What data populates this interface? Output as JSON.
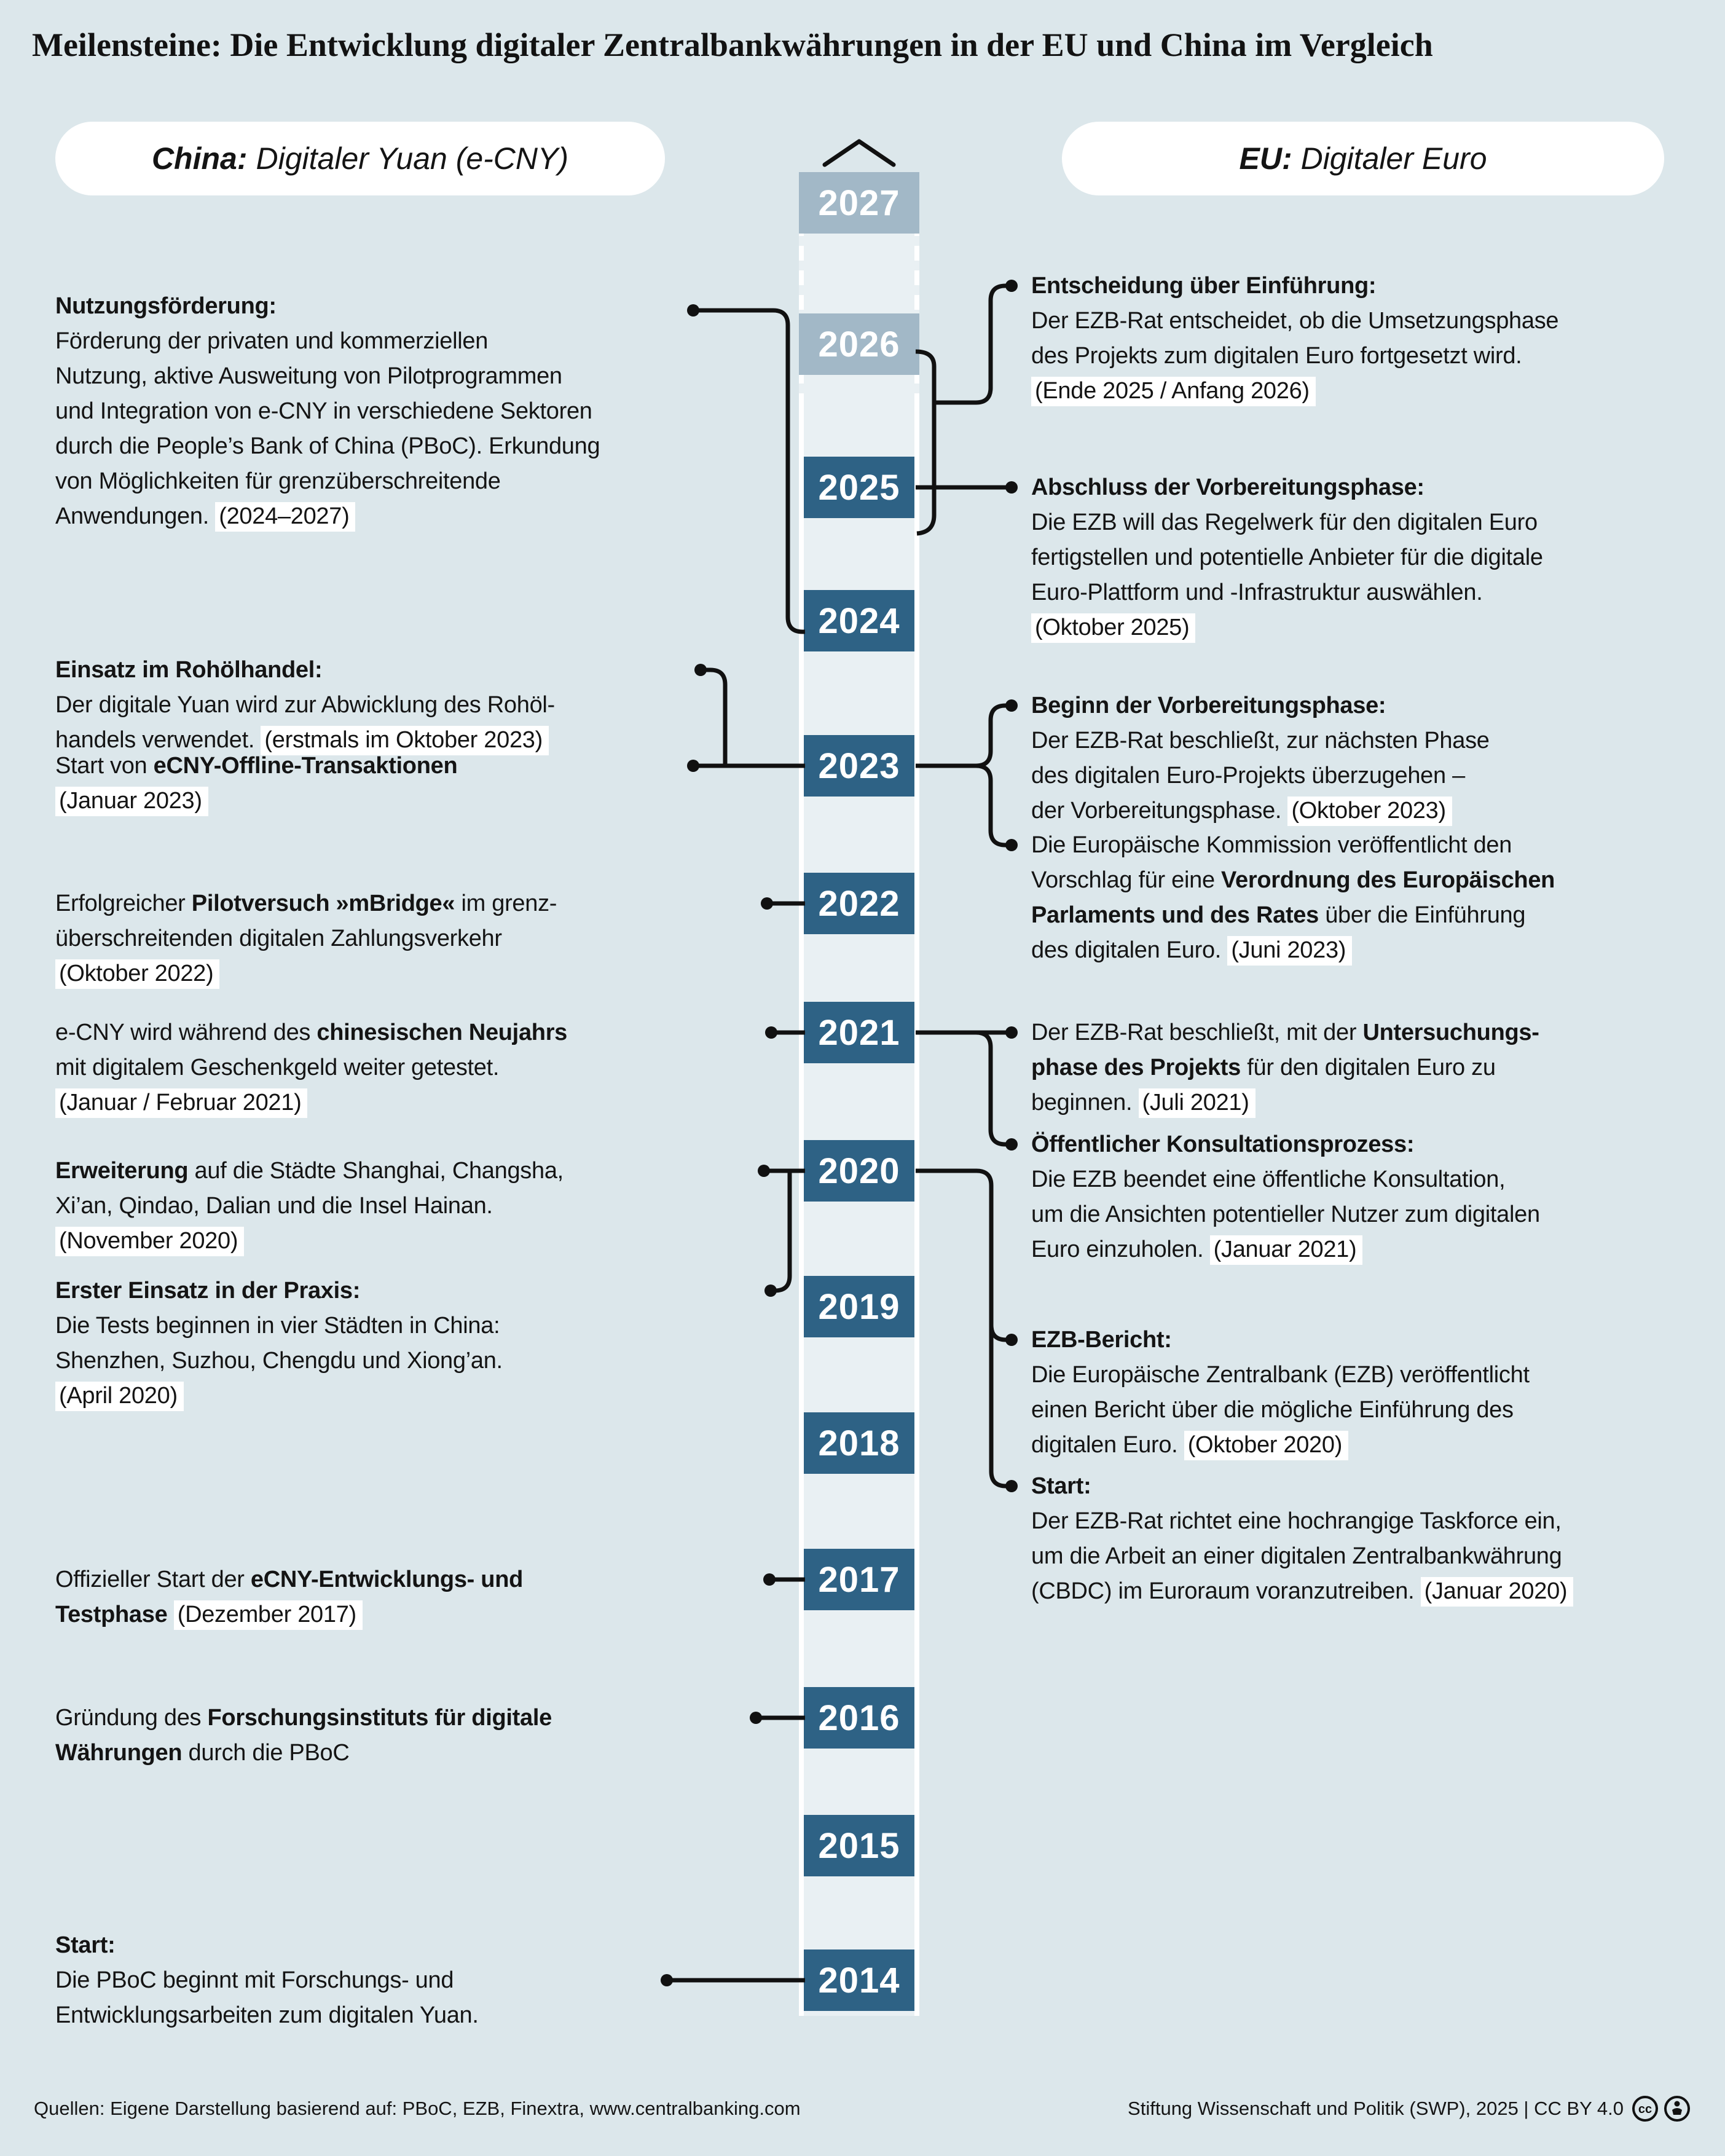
{
  "title": "Meilensteine: Die Entwicklung digitaler Zentralbankwährungen in der EU und China im Vergleich",
  "header": {
    "china_label_bold": "China:",
    "china_label_rest": "Digitaler Yuan (e-CNY)",
    "eu_label_bold": "EU:",
    "eu_label_rest": "Digitaler Euro"
  },
  "timeline": {
    "arrow_icon": "chevron-up-icon",
    "colors": {
      "background": "#dce7eb",
      "track": "#e9f0f3",
      "year_past": "#2e6285",
      "year_future": "#a2b8c7",
      "connector": "#111111",
      "highlight": "#ffffff"
    },
    "years": [
      {
        "label": "2027",
        "future": true
      },
      {
        "label": "2026",
        "future": true
      },
      {
        "label": "2025",
        "future": false
      },
      {
        "label": "2024",
        "future": false
      },
      {
        "label": "2023",
        "future": false
      },
      {
        "label": "2022",
        "future": false
      },
      {
        "label": "2021",
        "future": false
      },
      {
        "label": "2020",
        "future": false
      },
      {
        "label": "2019",
        "future": false
      },
      {
        "label": "2018",
        "future": false
      },
      {
        "label": "2017",
        "future": false
      },
      {
        "label": "2016",
        "future": false
      },
      {
        "label": "2015",
        "future": false
      },
      {
        "label": "2014",
        "future": false
      }
    ]
  },
  "china": [
    {
      "id": "nutzungsfoerderung",
      "years": "2024–2027",
      "lines": [
        [
          {
            "t": "Nutzungsförderung:",
            "b": true
          }
        ],
        [
          {
            "t": "Förderung der privaten und kommerziellen"
          }
        ],
        [
          {
            "t": "Nutzung, aktive Ausweitung von Pilotprogrammen"
          }
        ],
        [
          {
            "t": "und Integration von e-CNY in verschiedene Sektoren"
          }
        ],
        [
          {
            "t": "durch die People’s Bank of China (PBoC). Erkundung"
          }
        ],
        [
          {
            "t": "von Möglichkeiten für grenzüberschreitende"
          }
        ],
        [
          {
            "t": "Anwendungen. "
          },
          {
            "t": "(2024–2027)",
            "h": true
          }
        ]
      ]
    },
    {
      "id": "rohoelhandel",
      "years": "2023",
      "lines": [
        [
          {
            "t": "Einsatz im Rohölhandel:",
            "b": true
          }
        ],
        [
          {
            "t": "Der digitale Yuan wird zur Abwicklung des Rohöl-"
          }
        ],
        [
          {
            "t": "handels verwendet. "
          },
          {
            "t": "(erstmals im Oktober 2023)",
            "h": true
          }
        ]
      ]
    },
    {
      "id": "offline-transaktionen",
      "years": "2023",
      "lines": [
        [
          {
            "t": "Start von "
          },
          {
            "t": "eCNY-Offline-Transaktionen",
            "b": true
          }
        ],
        [
          {
            "t": "(Januar 2023)",
            "h": true
          }
        ]
      ]
    },
    {
      "id": "mbridge",
      "years": "2022",
      "lines": [
        [
          {
            "t": "Erfolgreicher "
          },
          {
            "t": "Pilotversuch »mBridge«",
            "b": true
          },
          {
            "t": " im grenz-"
          }
        ],
        [
          {
            "t": "überschreitenden digitalen Zahlungsverkehr"
          }
        ],
        [
          {
            "t": "(Oktober 2022)",
            "h": true
          }
        ]
      ]
    },
    {
      "id": "neujahr",
      "years": "2021",
      "lines": [
        [
          {
            "t": "e-CNY wird während des "
          },
          {
            "t": "chinesischen Neujahrs",
            "b": true
          }
        ],
        [
          {
            "t": "mit digitalem Geschenkgeld weiter getestet."
          }
        ],
        [
          {
            "t": "(Januar / Februar 2021)",
            "h": true
          }
        ]
      ]
    },
    {
      "id": "erweiterung",
      "years": "2020",
      "lines": [
        [
          {
            "t": "Erweiterung",
            "b": true
          },
          {
            "t": " auf die Städte Shanghai, Changsha,"
          }
        ],
        [
          {
            "t": "Xi’an, Qindao, Dalian und die Insel Hainan."
          }
        ],
        [
          {
            "t": "(November 2020)",
            "h": true
          }
        ]
      ]
    },
    {
      "id": "erster-einsatz",
      "years": "2020",
      "lines": [
        [
          {
            "t": "Erster Einsatz in der Praxis:",
            "b": true
          }
        ],
        [
          {
            "t": "Die Tests beginnen in vier Städten in China:"
          }
        ],
        [
          {
            "t": "Shenzhen, Suzhou, Chengdu und Xiong’an."
          }
        ],
        [
          {
            "t": "(April 2020)",
            "h": true
          }
        ]
      ]
    },
    {
      "id": "testphase",
      "years": "2017",
      "lines": [
        [
          {
            "t": "Offizieller Start der "
          },
          {
            "t": "eCNY-Entwicklungs- und",
            "b": true
          }
        ],
        [
          {
            "t": "Testphase",
            "b": true
          },
          {
            "t": " "
          },
          {
            "t": "(Dezember 2017)",
            "h": true
          }
        ]
      ]
    },
    {
      "id": "forschungsinstitut",
      "years": "2016",
      "lines": [
        [
          {
            "t": "Gründung des "
          },
          {
            "t": "Forschungsinstituts für digitale",
            "b": true
          }
        ],
        [
          {
            "t": "Währungen",
            "b": true
          },
          {
            "t": " durch die PBoC"
          }
        ]
      ]
    },
    {
      "id": "start-china",
      "years": "2014",
      "lines": [
        [
          {
            "t": "Start:",
            "b": true
          }
        ],
        [
          {
            "t": "Die PBoC beginnt mit Forschungs- und"
          }
        ],
        [
          {
            "t": "Entwicklungsarbeiten zum digitalen Yuan."
          }
        ]
      ]
    }
  ],
  "eu": [
    {
      "id": "entscheidung-einfuehrung",
      "years": "2025/2026",
      "lines": [
        [
          {
            "t": "Entscheidung über Einführung:",
            "b": true
          }
        ],
        [
          {
            "t": "Der EZB-Rat entscheidet, ob die Umsetzungsphase"
          }
        ],
        [
          {
            "t": "des Projekts zum digitalen Euro fortgesetzt wird."
          }
        ],
        [
          {
            "t": "(Ende 2025 / Anfang 2026)",
            "h": true
          }
        ]
      ]
    },
    {
      "id": "abschluss-vorbereitungsphase",
      "years": "2025",
      "lines": [
        [
          {
            "t": "Abschluss der Vorbereitungsphase:",
            "b": true
          }
        ],
        [
          {
            "t": "Die EZB will das Regelwerk für den digitalen Euro"
          }
        ],
        [
          {
            "t": "fertigstellen und potentielle Anbieter für die digitale"
          }
        ],
        [
          {
            "t": "Euro-Plattform und -Infrastruktur auswählen."
          }
        ],
        [
          {
            "t": "(Oktober 2025)",
            "h": true
          }
        ]
      ]
    },
    {
      "id": "beginn-vorbereitungsphase",
      "years": "2023",
      "lines": [
        [
          {
            "t": "Beginn der Vorbereitungsphase:",
            "b": true
          }
        ],
        [
          {
            "t": "Der EZB-Rat beschließt, zur nächsten Phase"
          }
        ],
        [
          {
            "t": "des digitalen Euro-Projekts überzugehen –"
          }
        ],
        [
          {
            "t": "der Vorbereitungsphase. "
          },
          {
            "t": "(Oktober 2023)",
            "h": true
          }
        ]
      ]
    },
    {
      "id": "verordnung",
      "years": "2023",
      "lines": [
        [
          {
            "t": "Die Europäische Kommission veröffentlicht den"
          }
        ],
        [
          {
            "t": "Vorschlag für eine "
          },
          {
            "t": "Verordnung des Europäischen",
            "b": true
          }
        ],
        [
          {
            "t": "Parlaments und des Rates",
            "b": true
          },
          {
            "t": " über die Einführung"
          }
        ],
        [
          {
            "t": "des digitalen Euro. "
          },
          {
            "t": "(Juni 2023)",
            "h": true
          }
        ]
      ]
    },
    {
      "id": "untersuchungsphase",
      "years": "2021",
      "lines": [
        [
          {
            "t": "Der EZB-Rat beschließt, mit der "
          },
          {
            "t": "Untersuchungs-",
            "b": true
          }
        ],
        [
          {
            "t": "phase des Projekts",
            "b": true
          },
          {
            "t": " für den digitalen Euro zu"
          }
        ],
        [
          {
            "t": "beginnen. "
          },
          {
            "t": "(Juli 2021)",
            "h": true
          }
        ]
      ]
    },
    {
      "id": "konsultationsprozess",
      "years": "2021",
      "lines": [
        [
          {
            "t": "Öffentlicher Konsultationsprozess:",
            "b": true
          }
        ],
        [
          {
            "t": "Die EZB beendet eine öffentliche Konsultation,"
          }
        ],
        [
          {
            "t": "um die Ansichten potentieller Nutzer zum digitalen"
          }
        ],
        [
          {
            "t": "Euro einzuholen. "
          },
          {
            "t": "(Januar 2021)",
            "h": true
          }
        ]
      ]
    },
    {
      "id": "ezb-bericht",
      "years": "2020",
      "lines": [
        [
          {
            "t": "EZB-Bericht:",
            "b": true
          }
        ],
        [
          {
            "t": "Die Europäische Zentralbank (EZB) veröffentlicht"
          }
        ],
        [
          {
            "t": "einen Bericht über die mögliche Einführung des"
          }
        ],
        [
          {
            "t": "digitalen Euro. "
          },
          {
            "t": "(Oktober 2020)",
            "h": true
          }
        ]
      ]
    },
    {
      "id": "start-eu",
      "years": "2020",
      "lines": [
        [
          {
            "t": "Start:",
            "b": true
          }
        ],
        [
          {
            "t": "Der EZB-Rat richtet eine hochrangige Taskforce ein,"
          }
        ],
        [
          {
            "t": "um die Arbeit an einer digitalen Zentralbankwährung"
          }
        ],
        [
          {
            "t": "(CBDC) im Euroraum voranzutreiben. "
          },
          {
            "t": "(Januar 2020)",
            "h": true
          }
        ]
      ]
    }
  ],
  "footer": {
    "sources": "Quellen: Eigene Darstellung basierend auf: PBoC, EZB, Finextra, www.centralbanking.com",
    "credit": "Stiftung Wissenschaft und Politik (SWP), 2025 | CC BY 4.0",
    "icons": [
      "cc-icon",
      "attribution-icon"
    ]
  }
}
